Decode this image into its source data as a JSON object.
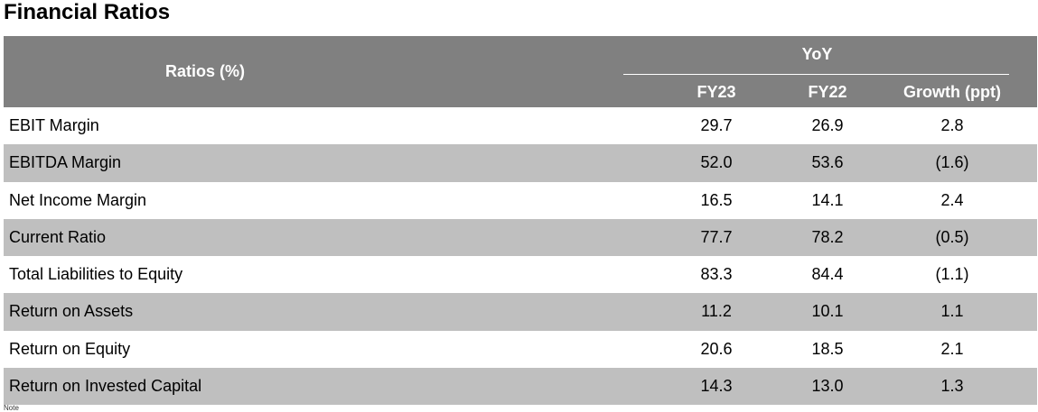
{
  "title": "Financial Ratios",
  "table": {
    "metric_header": "Ratios (%)",
    "group_header": "YoY",
    "columns": [
      "FY23",
      "FY22",
      "Growth (ppt)"
    ],
    "rows": [
      {
        "label": "EBIT Margin",
        "fy23": "29.7",
        "fy22": "26.9",
        "growth": "2.8"
      },
      {
        "label": "EBITDA Margin",
        "fy23": "52.0",
        "fy22": "53.6",
        "growth": "(1.6)"
      },
      {
        "label": "Net Income Margin",
        "fy23": "16.5",
        "fy22": "14.1",
        "growth": "2.4"
      },
      {
        "label": "Current Ratio",
        "fy23": "77.7",
        "fy22": "78.2",
        "growth": "(0.5)"
      },
      {
        "label": "Total Liabilities to Equity",
        "fy23": "83.3",
        "fy22": "84.4",
        "growth": "(1.1)"
      },
      {
        "label": "Return on Assets",
        "fy23": "11.2",
        "fy22": "10.1",
        "growth": "1.1"
      },
      {
        "label": "Return on Equity",
        "fy23": "20.6",
        "fy22": "18.5",
        "growth": "2.1"
      },
      {
        "label": "Return on Invested Capital",
        "fy23": "14.3",
        "fy22": "13.0",
        "growth": "1.3"
      }
    ]
  },
  "footnote": "Note",
  "colors": {
    "header_bg": "#808080",
    "shaded_row_bg": "#bfbfbf",
    "header_text": "#ffffff"
  }
}
